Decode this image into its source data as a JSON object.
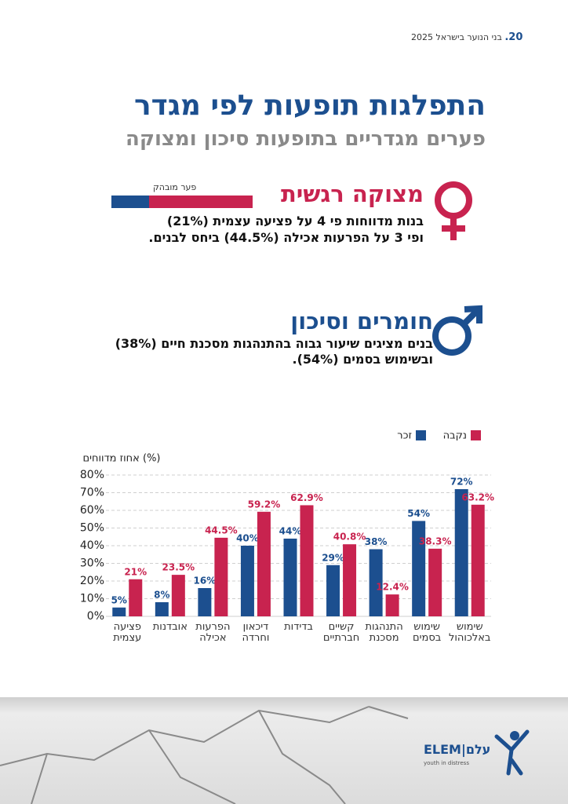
{
  "header": {
    "page_number": "20.",
    "publication": "בני הנוער בישראל 2025"
  },
  "title": "התפלגות תופעות לפי מגדר",
  "subtitle": "פערים מגדריים בתופעות סיכון ומצוקה",
  "sections": [
    {
      "heading": "מצוקה רגשית",
      "gap_label": "פער מובהק",
      "lines": [
        "בנות מדווחות פי 4 על פציעה עצמית (21%)",
        "ופי 3 על הפרעות אכילה (44.5%) ביחס לבנים."
      ]
    },
    {
      "heading": "חומרים וסיכון",
      "lines": [
        "בנים מציגים שיעור גבוה בהתנהגות מסכנת חיים (38%)",
        "ובשימוש בסמים (54%)."
      ]
    }
  ],
  "logo": {
    "latin": "ELEM",
    "hebrew": "עלם",
    "tagline": "youth in distress"
  },
  "chart_data": {
    "type": "bar",
    "y_label": "אחוז מדווחים (%)",
    "categories": [
      "פציעה עצמית",
      "אובדנות",
      "הפרעות אכילה",
      "דיכאון וחרדה",
      "בדידות",
      "קשיים חברתיים",
      "התנהגות מסכנת",
      "שימוש בסמים",
      "שימוש באלכוהול"
    ],
    "series": [
      {
        "name": "זכר",
        "color": "#1c4f8f",
        "values": [
          5,
          8,
          16,
          40,
          44,
          29,
          38,
          54,
          72
        ],
        "value_labels": [
          "5%",
          "8%",
          "16%",
          "40%",
          "44%",
          "29%",
          "38%",
          "54%",
          "72%"
        ]
      },
      {
        "name": "נקבה",
        "color": "#c8234f",
        "values": [
          21,
          23.5,
          44.5,
          59.2,
          62.9,
          40.8,
          12.4,
          38.3,
          63.2
        ],
        "value_labels": [
          "21%",
          "23.5%",
          "44.5%",
          "59.2%",
          "62.9%",
          "40.8%",
          "12.4%",
          "38.3%",
          "63.2%"
        ]
      }
    ],
    "ylim": [
      0,
      80
    ],
    "yticks": [
      {
        "value": 0,
        "label": "0%"
      },
      {
        "value": 10,
        "label": "10%"
      },
      {
        "value": 20,
        "label": "20%"
      },
      {
        "value": 30,
        "label": "30%"
      },
      {
        "value": 40,
        "label": "40%"
      },
      {
        "value": 50,
        "label": "50%"
      },
      {
        "value": 60,
        "label": "60%"
      },
      {
        "value": 70,
        "label": "70%"
      },
      {
        "value": 80,
        "label": "80%"
      }
    ],
    "grid": true,
    "legend": "top-right"
  }
}
